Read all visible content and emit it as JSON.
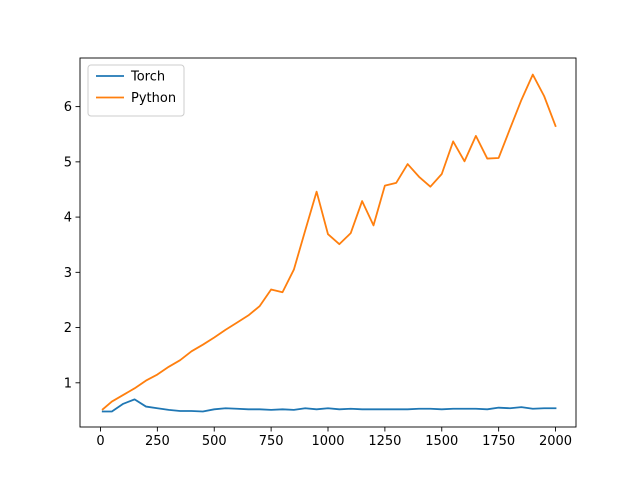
{
  "chart_data": {
    "type": "line",
    "title": "",
    "xlabel": "",
    "ylabel": "",
    "xlim": [
      -90,
      2090
    ],
    "ylim": [
      0.2,
      6.88
    ],
    "xticks": [
      0,
      250,
      500,
      750,
      1000,
      1250,
      1500,
      1750,
      2000
    ],
    "yticks": [
      1,
      2,
      3,
      4,
      5,
      6
    ],
    "grid": false,
    "legend_position": "top-left",
    "x": [
      10,
      50,
      100,
      150,
      200,
      250,
      300,
      350,
      400,
      450,
      500,
      550,
      600,
      650,
      700,
      750,
      800,
      850,
      900,
      950,
      1000,
      1050,
      1100,
      1150,
      1200,
      1250,
      1300,
      1350,
      1400,
      1450,
      1500,
      1550,
      1600,
      1650,
      1700,
      1750,
      1800,
      1850,
      1900,
      1950,
      2000
    ],
    "series": [
      {
        "name": "Torch",
        "color": "#1f77b4",
        "values": [
          0.48,
          0.48,
          0.62,
          0.7,
          0.57,
          0.54,
          0.51,
          0.49,
          0.49,
          0.48,
          0.52,
          0.54,
          0.53,
          0.52,
          0.52,
          0.51,
          0.52,
          0.51,
          0.54,
          0.52,
          0.54,
          0.52,
          0.53,
          0.52,
          0.52,
          0.52,
          0.52,
          0.52,
          0.53,
          0.53,
          0.52,
          0.53,
          0.53,
          0.53,
          0.52,
          0.55,
          0.54,
          0.56,
          0.53,
          0.54,
          0.54
        ]
      },
      {
        "name": "Python",
        "color": "#ff7f0e",
        "values": [
          0.52,
          0.66,
          0.78,
          0.9,
          1.04,
          1.15,
          1.29,
          1.41,
          1.57,
          1.69,
          1.82,
          1.96,
          2.09,
          2.22,
          2.39,
          2.69,
          2.64,
          3.05,
          3.76,
          4.46,
          3.69,
          3.51,
          3.71,
          4.29,
          3.85,
          4.57,
          4.62,
          4.96,
          4.73,
          4.55,
          4.78,
          5.37,
          5.01,
          5.47,
          5.06,
          5.07,
          5.6,
          6.12,
          6.58,
          6.19,
          5.65
        ]
      }
    ]
  }
}
